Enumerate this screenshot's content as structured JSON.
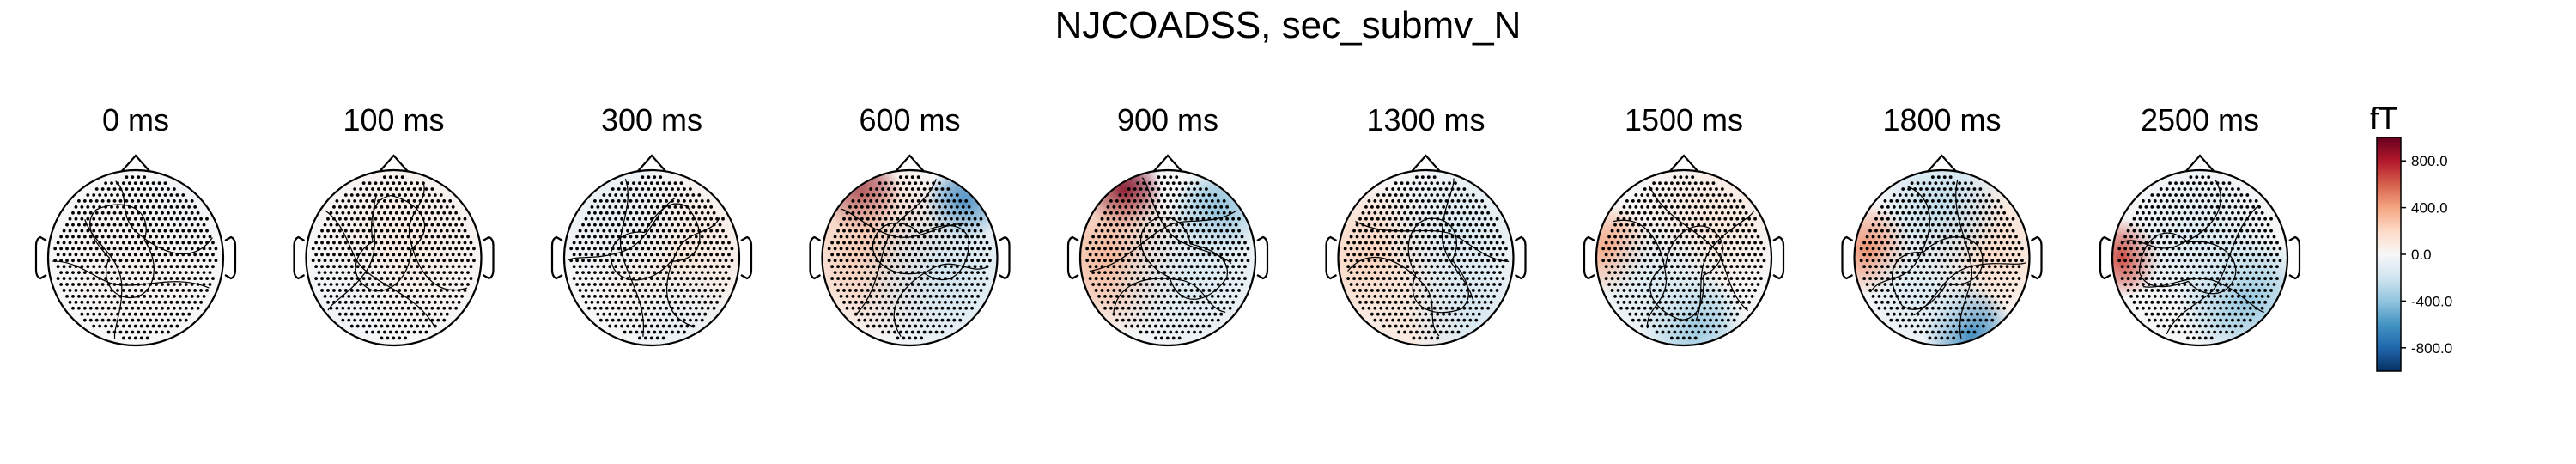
{
  "title": "NJCOADSS, sec_submv_N",
  "chart_data": {
    "type": "heatmap",
    "subtype": "topomap",
    "title": "NJCOADSS, sec_submv_N",
    "unit": "fT",
    "colormap": "RdBu_r",
    "clim": [
      -1000,
      1000
    ],
    "colorbar_ticks": [
      "800.0",
      "400.0",
      "0.0",
      "-400.0",
      "-800.0"
    ],
    "colorbar_tick_values": [
      800,
      400,
      0,
      -400,
      -800
    ],
    "panels": [
      {
        "label": "0 ms",
        "time_ms": 0,
        "blobs": [
          {
            "cx": 0.0,
            "cy": 0.0,
            "r": 0.6,
            "v": 40
          },
          {
            "cx": 0.5,
            "cy": -0.6,
            "r": 0.4,
            "v": -40
          }
        ]
      },
      {
        "label": "100 ms",
        "time_ms": 100,
        "blobs": [
          {
            "cx": 0.1,
            "cy": -0.2,
            "r": 0.7,
            "v": 90
          },
          {
            "cx": -0.6,
            "cy": 0.5,
            "r": 0.5,
            "v": -40
          }
        ]
      },
      {
        "label": "300 ms",
        "time_ms": 300,
        "blobs": [
          {
            "cx": 0.3,
            "cy": 0.0,
            "r": 0.7,
            "v": 130
          },
          {
            "cx": -0.4,
            "cy": -0.5,
            "r": 0.6,
            "v": -90
          },
          {
            "cx": 0.3,
            "cy": 0.75,
            "r": 0.5,
            "v": -80
          }
        ]
      },
      {
        "label": "600 ms",
        "time_ms": 600,
        "blobs": [
          {
            "cx": -0.55,
            "cy": -0.72,
            "r": 0.3,
            "v": 950
          },
          {
            "cx": -0.4,
            "cy": -0.1,
            "r": 0.7,
            "v": 280
          },
          {
            "cx": 0.62,
            "cy": -0.62,
            "r": 0.3,
            "v": -700
          },
          {
            "cx": 0.4,
            "cy": 0.2,
            "r": 0.7,
            "v": -200
          }
        ]
      },
      {
        "label": "900 ms",
        "time_ms": 900,
        "blobs": [
          {
            "cx": -0.5,
            "cy": -0.75,
            "r": 0.3,
            "v": 950
          },
          {
            "cx": -0.6,
            "cy": 0.0,
            "r": 0.6,
            "v": 350
          },
          {
            "cx": 0.55,
            "cy": -0.5,
            "r": 0.35,
            "v": -480
          },
          {
            "cx": 0.3,
            "cy": 0.2,
            "r": 0.7,
            "v": -150
          }
        ]
      },
      {
        "label": "1300 ms",
        "time_ms": 1300,
        "blobs": [
          {
            "cx": -0.65,
            "cy": 0.0,
            "r": 0.6,
            "v": 230
          },
          {
            "cx": -0.2,
            "cy": 0.7,
            "r": 0.5,
            "v": 120
          },
          {
            "cx": 0.4,
            "cy": -0.3,
            "r": 0.6,
            "v": -150
          },
          {
            "cx": 0.5,
            "cy": 0.6,
            "r": 0.5,
            "v": -180
          }
        ]
      },
      {
        "label": "1500 ms",
        "time_ms": 1500,
        "blobs": [
          {
            "cx": -0.85,
            "cy": -0.1,
            "r": 0.35,
            "v": 400
          },
          {
            "cx": 0.3,
            "cy": -0.4,
            "r": 0.6,
            "v": 120
          },
          {
            "cx": 0.1,
            "cy": 0.75,
            "r": 0.4,
            "v": -400
          },
          {
            "cx": -0.3,
            "cy": 0.3,
            "r": 0.5,
            "v": -150
          }
        ]
      },
      {
        "label": "1800 ms",
        "time_ms": 1800,
        "blobs": [
          {
            "cx": -0.85,
            "cy": -0.1,
            "r": 0.35,
            "v": 450
          },
          {
            "cx": 0.5,
            "cy": -0.1,
            "r": 0.6,
            "v": 200
          },
          {
            "cx": 0.0,
            "cy": -0.6,
            "r": 0.5,
            "v": -250
          },
          {
            "cx": 0.3,
            "cy": 0.85,
            "r": 0.35,
            "v": -650
          },
          {
            "cx": -0.2,
            "cy": 0.4,
            "r": 0.5,
            "v": -150
          }
        ]
      },
      {
        "label": "2500 ms",
        "time_ms": 2500,
        "blobs": [
          {
            "cx": -0.88,
            "cy": 0.0,
            "r": 0.3,
            "v": 650
          },
          {
            "cx": 0.5,
            "cy": 0.45,
            "r": 0.5,
            "v": -400
          },
          {
            "cx": 0.0,
            "cy": -0.2,
            "r": 0.6,
            "v": -150
          }
        ]
      }
    ]
  }
}
